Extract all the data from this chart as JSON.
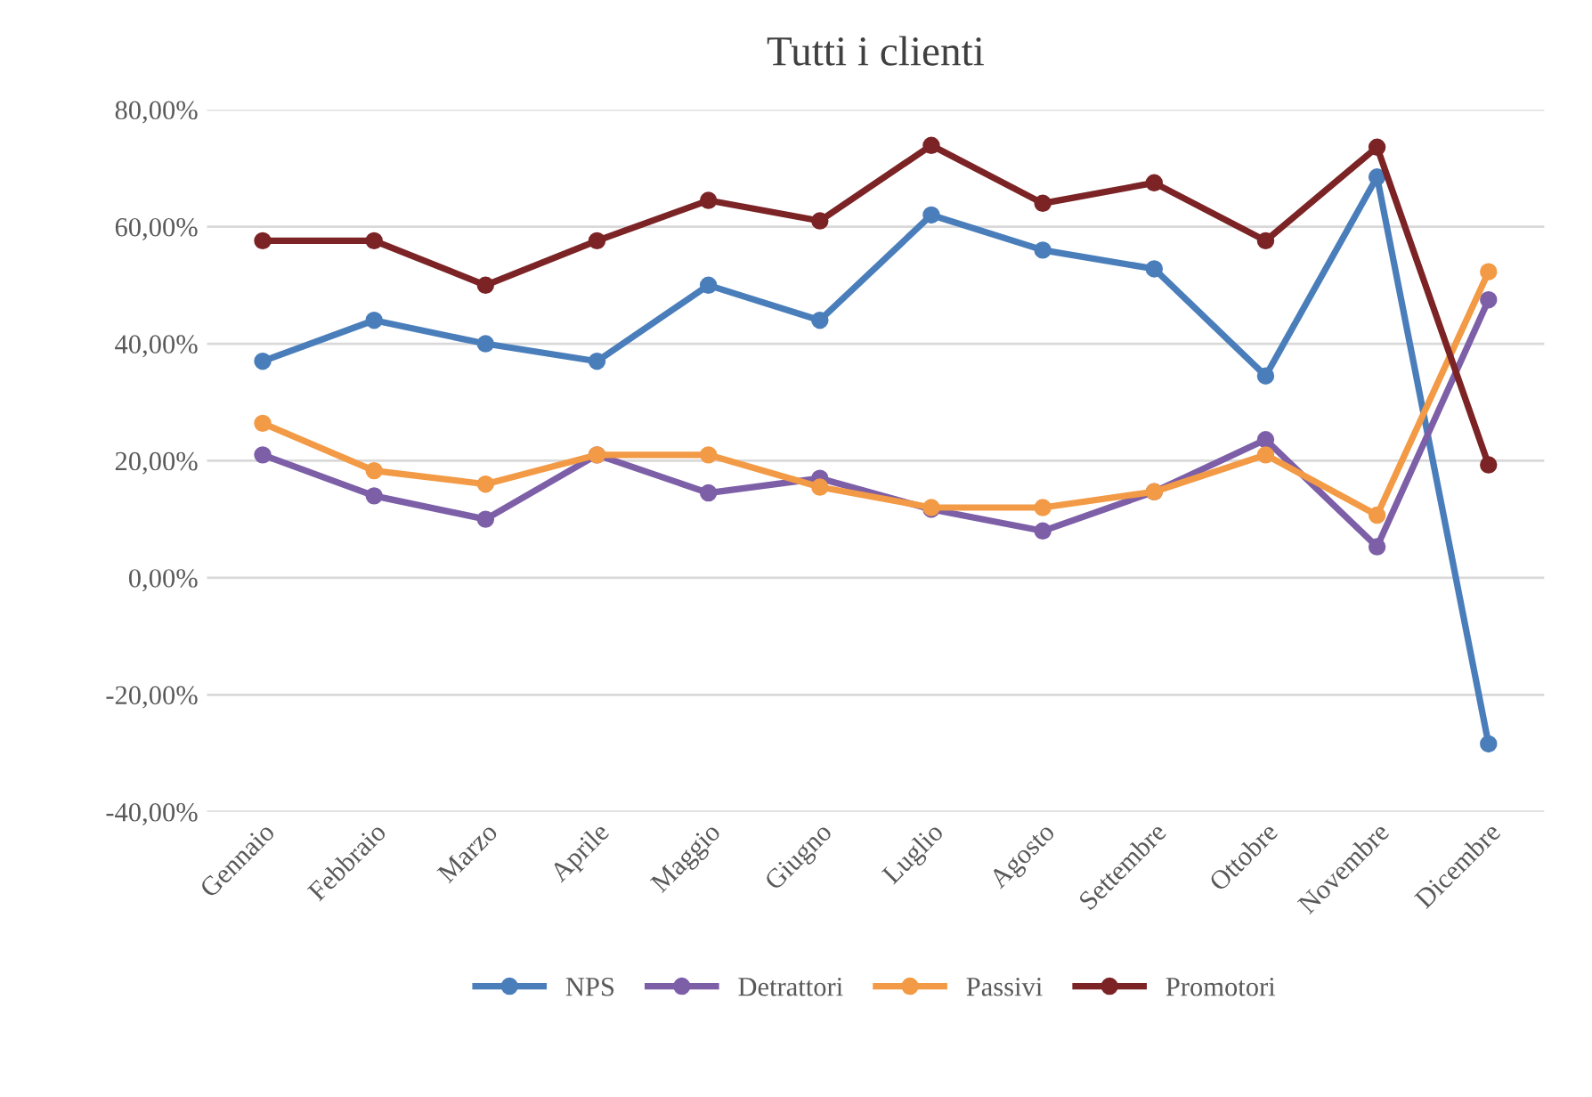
{
  "chart_data": {
    "type": "line",
    "title": "Tutti i clienti",
    "categories": [
      "Gennaio",
      "Febbraio",
      "Marzo",
      "Aprile",
      "Maggio",
      "Giugno",
      "Luglio",
      "Agosto",
      "Settembre",
      "Ottobre",
      "Novembre",
      "Dicembre"
    ],
    "series": [
      {
        "name": "NPS",
        "color": "#4a7ebb",
        "values": [
          37,
          44,
          40,
          37,
          50,
          44,
          62,
          56,
          52.8,
          34.5,
          68.5,
          -28.4
        ]
      },
      {
        "name": "Detrattori",
        "color": "#7d5fa8",
        "values": [
          21,
          14,
          10,
          21,
          14.5,
          17,
          11.7,
          8,
          14.7,
          23.6,
          5.3,
          47.5
        ]
      },
      {
        "name": "Passivi",
        "color": "#f29a45",
        "values": [
          26.4,
          18.3,
          16,
          21,
          21,
          15.5,
          12,
          12,
          14.7,
          21,
          10.7,
          52.3
        ]
      },
      {
        "name": "Promotori",
        "color": "#7b2325",
        "values": [
          57.6,
          57.6,
          50,
          57.6,
          64.5,
          61,
          73.9,
          64,
          67.5,
          57.6,
          73.6,
          19.3
        ]
      }
    ],
    "ylim": [
      -40,
      80
    ],
    "yticks": [
      {
        "value": -40,
        "label": "-40,00%"
      },
      {
        "value": -20,
        "label": "-20,00%"
      },
      {
        "value": 0,
        "label": "0,00%"
      },
      {
        "value": 20,
        "label": "20,00%"
      },
      {
        "value": 40,
        "label": "40,00%"
      },
      {
        "value": 60,
        "label": "60,00%"
      },
      {
        "value": 80,
        "label": "80,00%"
      }
    ],
    "grid": "y",
    "legend": "bottom",
    "marker": "circle",
    "line_style": "solid"
  }
}
